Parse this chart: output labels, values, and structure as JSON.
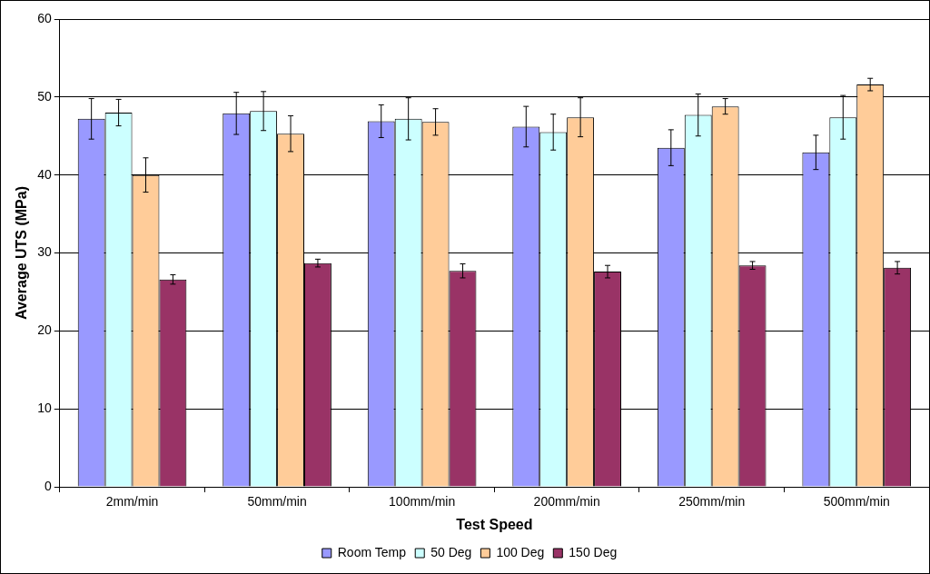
{
  "chart_data": {
    "type": "bar",
    "xlabel": "Test Speed",
    "ylabel": "Average UTS (MPa)",
    "categories": [
      "2mm/min",
      "50mm/min",
      "100mm/min",
      "200mm/min",
      "250mm/min",
      "500mm/min"
    ],
    "series": [
      {
        "name": "Room Temp",
        "color": "#9999ff",
        "values": [
          47.2,
          47.9,
          46.9,
          46.2,
          43.5,
          42.9
        ],
        "errors": [
          2.6,
          2.7,
          2.1,
          2.6,
          2.3,
          2.2
        ]
      },
      {
        "name": "50 Deg",
        "color": "#ccffff",
        "values": [
          48.0,
          48.2,
          47.2,
          45.5,
          47.7,
          47.4
        ],
        "errors": [
          1.7,
          2.5,
          2.7,
          2.3,
          2.7,
          2.8
        ]
      },
      {
        "name": "100 Deg",
        "color": "#ffcc99",
        "values": [
          40.0,
          45.3,
          46.8,
          47.4,
          48.8,
          51.6
        ],
        "errors": [
          2.2,
          2.3,
          1.7,
          2.5,
          1.0,
          0.8
        ]
      },
      {
        "name": "150 Deg",
        "color": "#993366",
        "values": [
          26.6,
          28.7,
          27.7,
          27.6,
          28.4,
          28.1
        ],
        "errors": [
          0.6,
          0.5,
          0.9,
          0.8,
          0.5,
          0.8
        ]
      }
    ],
    "ylim": [
      0,
      60
    ],
    "yticks": [
      0,
      10,
      20,
      30,
      40,
      50,
      60
    ],
    "grid": "y",
    "legend": "bottom"
  }
}
